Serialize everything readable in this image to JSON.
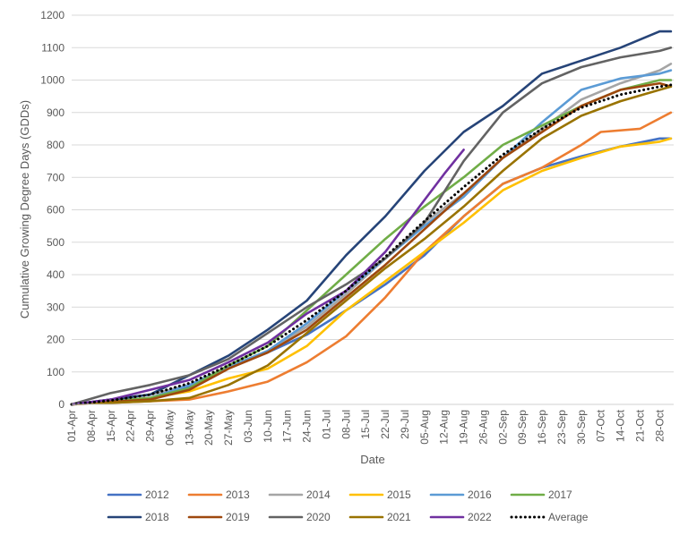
{
  "chart_data": {
    "type": "line",
    "xlabel": "Date",
    "ylabel": "Cumulative Growing Degree Days (GDDs)",
    "ylim": [
      0,
      1200
    ],
    "yticks": [
      0,
      100,
      200,
      300,
      400,
      500,
      600,
      700,
      800,
      900,
      1000,
      1100,
      1200
    ],
    "xlim": [
      "04-01",
      "11-02"
    ],
    "xticks": [
      "01-Apr",
      "08-Apr",
      "15-Apr",
      "22-Apr",
      "29-Apr",
      "06-May",
      "13-May",
      "20-May",
      "27-May",
      "03-Jun",
      "10-Jun",
      "17-Jun",
      "24-Jun",
      "01-Jul",
      "08-Jul",
      "15-Jul",
      "22-Jul",
      "29-Jul",
      "05-Aug",
      "12-Aug",
      "19-Aug",
      "26-Aug",
      "02-Sep",
      "09-Sep",
      "16-Sep",
      "23-Sep",
      "30-Sep",
      "07-Oct",
      "14-Oct",
      "21-Oct",
      "28-Oct"
    ],
    "grid": "horizontal",
    "legend_position": "bottom",
    "series": [
      {
        "name": "2012",
        "color": "#4472C4",
        "style": "solid",
        "points": [
          [
            "04-01",
            0
          ],
          [
            "04-15",
            8
          ],
          [
            "04-29",
            18
          ],
          [
            "05-13",
            55
          ],
          [
            "05-27",
            115
          ],
          [
            "06-10",
            160
          ],
          [
            "06-24",
            215
          ],
          [
            "07-08",
            290
          ],
          [
            "07-22",
            370
          ],
          [
            "08-05",
            460
          ],
          [
            "08-19",
            580
          ],
          [
            "09-02",
            680
          ],
          [
            "09-16",
            730
          ],
          [
            "09-30",
            765
          ],
          [
            "10-14",
            795
          ],
          [
            "10-28",
            820
          ],
          [
            "11-01",
            820
          ]
        ]
      },
      {
        "name": "2013",
        "color": "#ED7D31",
        "style": "solid",
        "points": [
          [
            "04-01",
            0
          ],
          [
            "04-15",
            5
          ],
          [
            "04-29",
            10
          ],
          [
            "05-13",
            15
          ],
          [
            "05-27",
            40
          ],
          [
            "06-10",
            70
          ],
          [
            "06-24",
            130
          ],
          [
            "07-08",
            210
          ],
          [
            "07-22",
            330
          ],
          [
            "08-05",
            470
          ],
          [
            "08-19",
            580
          ],
          [
            "09-02",
            680
          ],
          [
            "09-16",
            730
          ],
          [
            "09-30",
            800
          ],
          [
            "10-07",
            840
          ],
          [
            "10-21",
            850
          ],
          [
            "11-01",
            900
          ]
        ]
      },
      {
        "name": "2014",
        "color": "#A5A5A5",
        "style": "solid",
        "points": [
          [
            "04-01",
            0
          ],
          [
            "04-15",
            15
          ],
          [
            "04-29",
            30
          ],
          [
            "05-13",
            60
          ],
          [
            "05-27",
            115
          ],
          [
            "06-10",
            165
          ],
          [
            "06-24",
            240
          ],
          [
            "07-08",
            340
          ],
          [
            "07-22",
            450
          ],
          [
            "08-05",
            560
          ],
          [
            "08-19",
            650
          ],
          [
            "09-02",
            760
          ],
          [
            "09-16",
            850
          ],
          [
            "09-30",
            940
          ],
          [
            "10-14",
            990
          ],
          [
            "10-28",
            1030
          ],
          [
            "11-01",
            1050
          ]
        ]
      },
      {
        "name": "2015",
        "color": "#FFC000",
        "style": "solid",
        "points": [
          [
            "04-01",
            0
          ],
          [
            "04-15",
            10
          ],
          [
            "04-29",
            20
          ],
          [
            "05-13",
            40
          ],
          [
            "05-27",
            80
          ],
          [
            "06-10",
            110
          ],
          [
            "06-24",
            180
          ],
          [
            "07-08",
            290
          ],
          [
            "07-22",
            380
          ],
          [
            "08-05",
            470
          ],
          [
            "08-19",
            560
          ],
          [
            "09-02",
            660
          ],
          [
            "09-16",
            720
          ],
          [
            "09-30",
            760
          ],
          [
            "10-14",
            795
          ],
          [
            "10-28",
            810
          ],
          [
            "11-01",
            820
          ]
        ]
      },
      {
        "name": "2016",
        "color": "#5B9BD5",
        "style": "solid",
        "points": [
          [
            "04-01",
            0
          ],
          [
            "04-15",
            8
          ],
          [
            "04-29",
            20
          ],
          [
            "05-13",
            60
          ],
          [
            "05-27",
            115
          ],
          [
            "06-10",
            165
          ],
          [
            "06-24",
            250
          ],
          [
            "07-08",
            350
          ],
          [
            "07-22",
            450
          ],
          [
            "08-05",
            550
          ],
          [
            "08-19",
            640
          ],
          [
            "09-02",
            760
          ],
          [
            "09-16",
            870
          ],
          [
            "09-30",
            970
          ],
          [
            "10-14",
            1005
          ],
          [
            "10-28",
            1020
          ],
          [
            "11-01",
            1030
          ]
        ]
      },
      {
        "name": "2017",
        "color": "#70AD47",
        "style": "solid",
        "points": [
          [
            "04-01",
            0
          ],
          [
            "04-15",
            10
          ],
          [
            "04-29",
            20
          ],
          [
            "05-13",
            50
          ],
          [
            "05-27",
            120
          ],
          [
            "06-10",
            180
          ],
          [
            "06-24",
            290
          ],
          [
            "07-08",
            400
          ],
          [
            "07-22",
            510
          ],
          [
            "08-05",
            610
          ],
          [
            "08-19",
            700
          ],
          [
            "09-02",
            800
          ],
          [
            "09-16",
            860
          ],
          [
            "09-30",
            920
          ],
          [
            "10-14",
            970
          ],
          [
            "10-28",
            1000
          ],
          [
            "11-01",
            1000
          ]
        ]
      },
      {
        "name": "2018",
        "color": "#264478",
        "style": "solid",
        "points": [
          [
            "04-01",
            0
          ],
          [
            "04-15",
            15
          ],
          [
            "04-29",
            30
          ],
          [
            "05-13",
            90
          ],
          [
            "05-27",
            150
          ],
          [
            "06-10",
            230
          ],
          [
            "06-24",
            320
          ],
          [
            "07-08",
            460
          ],
          [
            "07-22",
            580
          ],
          [
            "08-05",
            720
          ],
          [
            "08-19",
            840
          ],
          [
            "09-02",
            920
          ],
          [
            "09-16",
            1020
          ],
          [
            "09-30",
            1060
          ],
          [
            "10-14",
            1100
          ],
          [
            "10-28",
            1150
          ],
          [
            "11-01",
            1150
          ]
        ]
      },
      {
        "name": "2019",
        "color": "#9E480E",
        "style": "solid",
        "points": [
          [
            "04-01",
            0
          ],
          [
            "04-15",
            8
          ],
          [
            "04-29",
            15
          ],
          [
            "05-13",
            45
          ],
          [
            "05-27",
            110
          ],
          [
            "06-10",
            160
          ],
          [
            "06-24",
            230
          ],
          [
            "07-08",
            330
          ],
          [
            "07-22",
            430
          ],
          [
            "08-05",
            540
          ],
          [
            "08-19",
            650
          ],
          [
            "09-02",
            760
          ],
          [
            "09-16",
            840
          ],
          [
            "09-30",
            920
          ],
          [
            "10-14",
            970
          ],
          [
            "10-28",
            990
          ],
          [
            "11-01",
            980
          ]
        ]
      },
      {
        "name": "2020",
        "color": "#636363",
        "style": "solid",
        "points": [
          [
            "04-01",
            0
          ],
          [
            "04-15",
            35
          ],
          [
            "04-29",
            60
          ],
          [
            "05-13",
            90
          ],
          [
            "05-27",
            140
          ],
          [
            "06-10",
            220
          ],
          [
            "06-24",
            300
          ],
          [
            "07-08",
            370
          ],
          [
            "07-22",
            450
          ],
          [
            "08-05",
            560
          ],
          [
            "08-19",
            750
          ],
          [
            "09-02",
            900
          ],
          [
            "09-16",
            990
          ],
          [
            "09-30",
            1040
          ],
          [
            "10-14",
            1070
          ],
          [
            "10-28",
            1090
          ],
          [
            "11-01",
            1100
          ]
        ]
      },
      {
        "name": "2021",
        "color": "#997300",
        "style": "solid",
        "points": [
          [
            "04-01",
            0
          ],
          [
            "04-15",
            5
          ],
          [
            "04-29",
            10
          ],
          [
            "05-13",
            20
          ],
          [
            "05-27",
            60
          ],
          [
            "06-10",
            120
          ],
          [
            "06-24",
            220
          ],
          [
            "07-08",
            320
          ],
          [
            "07-22",
            420
          ],
          [
            "08-05",
            510
          ],
          [
            "08-19",
            610
          ],
          [
            "09-02",
            720
          ],
          [
            "09-16",
            820
          ],
          [
            "09-30",
            890
          ],
          [
            "10-14",
            935
          ],
          [
            "10-28",
            970
          ],
          [
            "11-01",
            980
          ]
        ]
      },
      {
        "name": "2022",
        "color": "#7030A0",
        "style": "solid",
        "points": [
          [
            "04-01",
            0
          ],
          [
            "04-15",
            15
          ],
          [
            "04-29",
            45
          ],
          [
            "05-13",
            75
          ],
          [
            "05-27",
            130
          ],
          [
            "06-10",
            190
          ],
          [
            "06-24",
            280
          ],
          [
            "07-08",
            350
          ],
          [
            "07-22",
            470
          ],
          [
            "08-05",
            630
          ],
          [
            "08-12",
            710
          ],
          [
            "08-19",
            785
          ]
        ]
      },
      {
        "name": "Average",
        "color": "#000000",
        "style": "dotted",
        "points": [
          [
            "04-01",
            0
          ],
          [
            "04-15",
            12
          ],
          [
            "04-29",
            30
          ],
          [
            "05-13",
            65
          ],
          [
            "05-27",
            120
          ],
          [
            "06-10",
            180
          ],
          [
            "06-24",
            260
          ],
          [
            "07-08",
            350
          ],
          [
            "07-22",
            455
          ],
          [
            "08-05",
            565
          ],
          [
            "08-19",
            670
          ],
          [
            "09-02",
            770
          ],
          [
            "09-16",
            850
          ],
          [
            "09-30",
            915
          ],
          [
            "10-14",
            955
          ],
          [
            "10-28",
            980
          ],
          [
            "11-01",
            985
          ]
        ]
      }
    ]
  }
}
